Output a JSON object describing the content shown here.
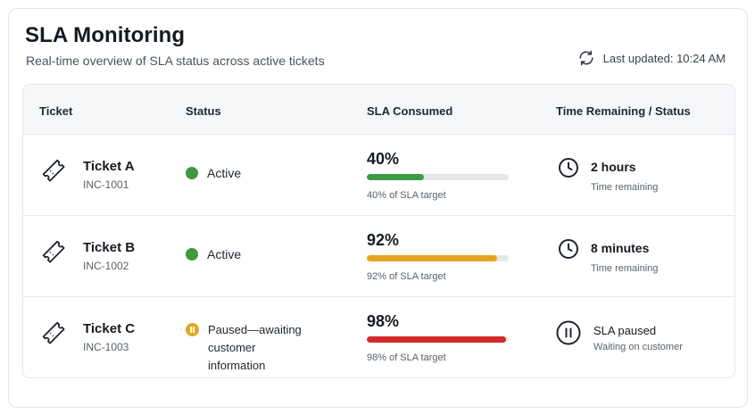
{
  "header": {
    "title": "SLA Monitoring",
    "subtitle": "Real-time overview of SLA status across active tickets",
    "last_updated": "Last updated: 10:24 AM"
  },
  "table": {
    "columns": [
      "Ticket",
      "Status",
      "SLA Consumed",
      "Time Remaining / Status"
    ],
    "rows": [
      {
        "name": "Ticket A",
        "id": "INC-1001",
        "status": "Active",
        "status_color": "#3d9a3f",
        "percent": "40%",
        "progress": 0.4,
        "bar_color": "#3d9a3f",
        "target": "40% of SLA target",
        "time_main": "2 hours",
        "time_sub": "Time remaining",
        "time_icon": "clock-icon"
      },
      {
        "name": "Ticket B",
        "id": "INC-1002",
        "status": "Active",
        "status_color": "#3d9a3f",
        "percent": "92%",
        "progress": 0.92,
        "bar_color": "#e6a521",
        "target": "92% of SLA target",
        "time_main": "8 minutes",
        "time_sub": "Time remaining",
        "time_icon": "clock-icon"
      },
      {
        "name": "Ticket C",
        "id": "INC-1003",
        "status": "Paused—awaiting customer information",
        "status_color": "#e6a521",
        "percent": "98%",
        "progress": 0.98,
        "bar_color": "#d32b2b",
        "target": "98% of SLA target",
        "time_main": "SLA paused",
        "time_sub": "Waiting on customer",
        "time_icon": "pause-circle-icon"
      }
    ]
  }
}
